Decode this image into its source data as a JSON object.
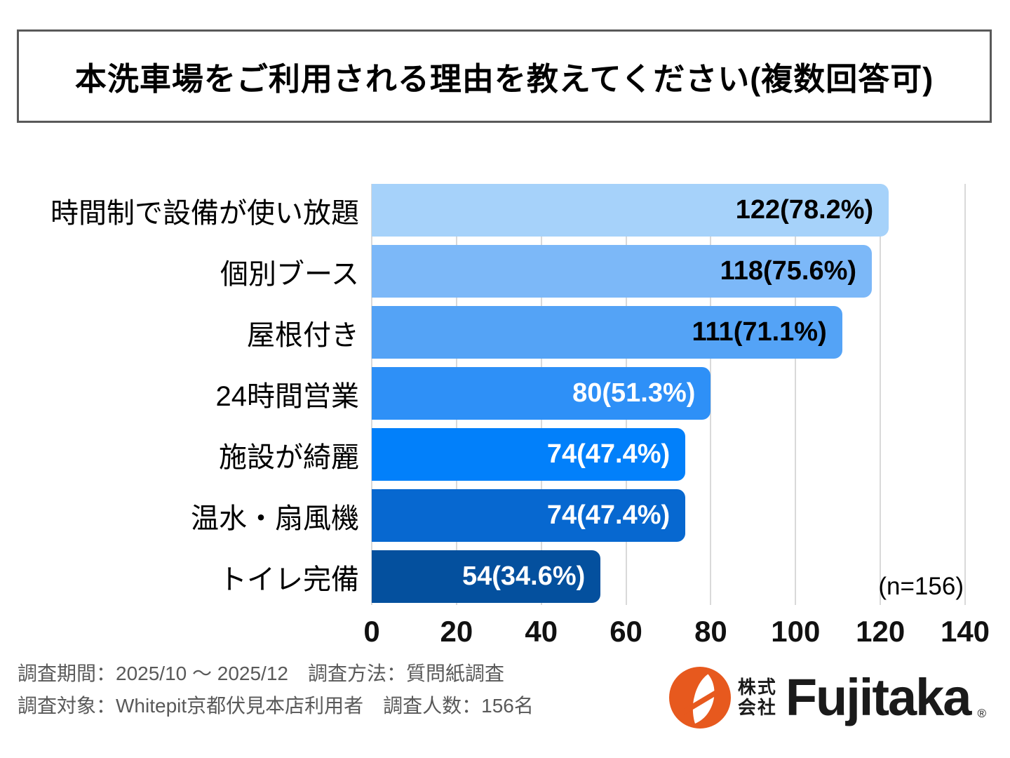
{
  "title": "本洗車場をご利用される理由を教えてください(複数回答可)",
  "chart_data": {
    "type": "bar",
    "orientation": "horizontal",
    "title": "本洗車場をご利用される理由を教えてください(複数回答可)",
    "categories": [
      "時間制で設備が使い放題",
      "個別ブース",
      "屋根付き",
      "24時間営業",
      "施設が綺麗",
      "温水・扇風機",
      "トイレ完備"
    ],
    "values": [
      122,
      118,
      111,
      80,
      74,
      74,
      54
    ],
    "percentages": [
      78.2,
      75.6,
      71.1,
      51.3,
      47.4,
      47.4,
      34.6
    ],
    "value_labels": [
      "122(78.2%)",
      "118(75.6%)",
      "111(71.1%)",
      "80(51.3%)",
      "74(47.4%)",
      "74(47.4%)",
      "54(34.6%)"
    ],
    "sample_size": 156,
    "n_label": "(n=156)",
    "xlim": [
      0,
      140
    ],
    "x_ticks": [
      0,
      20,
      40,
      60,
      80,
      100,
      120,
      140
    ],
    "grid": true,
    "legend_position": "none",
    "gridline_color": "#d9d9d9",
    "bar_colors": [
      "#a6d2fa",
      "#7cb8f8",
      "#54a3f6",
      "#2e90f7",
      "#0280fa",
      "#0768d0",
      "#04509e"
    ],
    "value_label_colors": [
      "#000000",
      "#000000",
      "#000000",
      "#ffffff",
      "#ffffff",
      "#ffffff",
      "#ffffff"
    ]
  },
  "footer": {
    "line1": "調査期間：2025/10 ～ 2025/12　調査方法：質問紙調査",
    "line2": "調査対象：Whitepit京都伏見本店利用者　調査人数：156名"
  },
  "logo": {
    "company_prefix_line1": "株式",
    "company_prefix_line2": "会社",
    "brand": "Fujitaka",
    "registered_mark": "®",
    "icon": "fujitaka-leaf-icon",
    "icon_color": "#e7591e",
    "text_color": "#1a1a1a"
  }
}
